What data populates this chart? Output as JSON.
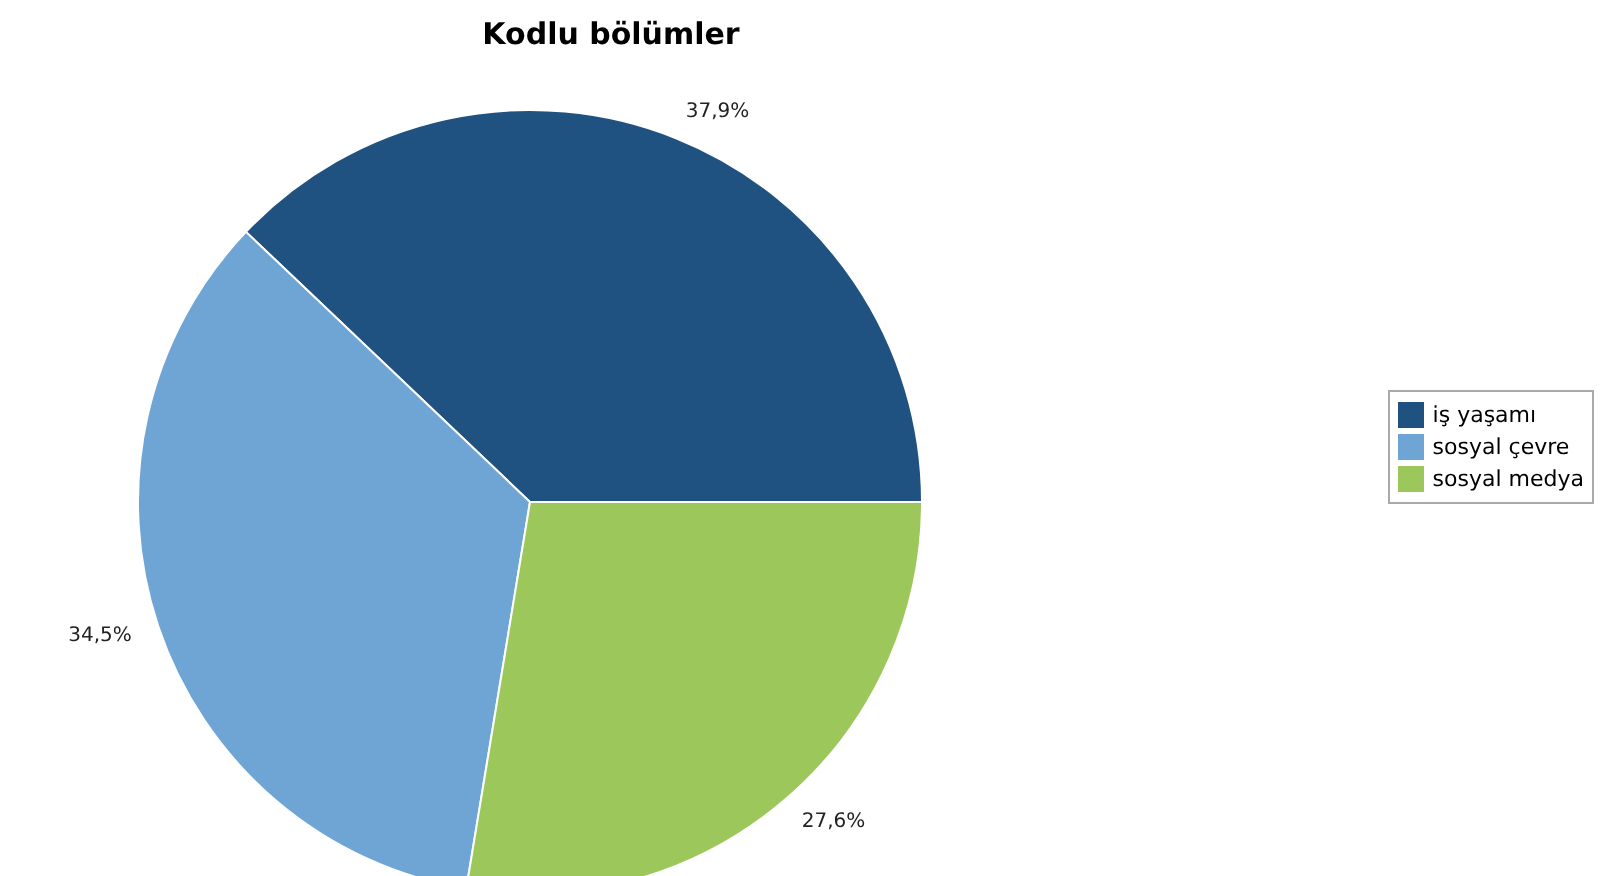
{
  "chart_data": {
    "type": "pie",
    "title": "Kodlu bölümler",
    "categories": [
      "iş yaşamı",
      "sosyal çevre",
      "sosyal medya"
    ],
    "values": [
      37.9,
      34.5,
      27.6
    ],
    "value_labels": [
      "37,9%",
      "34,5%",
      "27,6%"
    ],
    "colors": [
      "#1f5280",
      "#6fa5d5",
      "#9cc75a"
    ],
    "legend": "right"
  }
}
